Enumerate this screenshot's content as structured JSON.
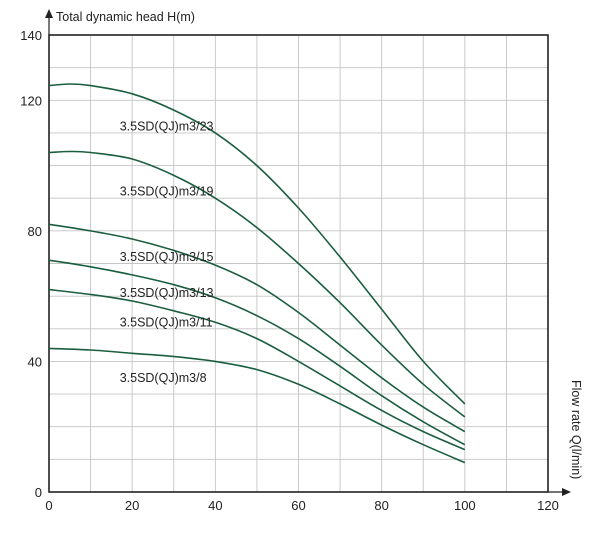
{
  "chart_data": {
    "type": "line",
    "xlabel": "Flow rate Q(l/min)",
    "ylabel": "Total dynamic head H(m)",
    "xlim": [
      0,
      120
    ],
    "ylim": [
      0,
      140
    ],
    "x_ticks": [
      0,
      20,
      40,
      60,
      80,
      100,
      120
    ],
    "y_ticks": [
      0,
      40,
      80,
      120,
      140
    ],
    "grid": true,
    "legend": "none",
    "colors": {
      "curve": "#1b5e3f",
      "grid": "#c4c4c4",
      "axis": "#222222",
      "text": "#222222"
    },
    "series": [
      {
        "name": "3.5SD(QJ)m3/23",
        "x": [
          0,
          5,
          10,
          20,
          30,
          40,
          50,
          60,
          70,
          80,
          90,
          100
        ],
        "y": [
          124.5,
          125,
          124.5,
          122,
          117,
          110,
          100,
          87,
          72,
          56,
          40,
          27
        ]
      },
      {
        "name": "3.5SD(QJ)m3/19",
        "x": [
          0,
          5,
          10,
          20,
          30,
          40,
          50,
          60,
          70,
          80,
          90,
          100
        ],
        "y": [
          104,
          104.3,
          104,
          102,
          97,
          90,
          81,
          70,
          58,
          45,
          33,
          23
        ]
      },
      {
        "name": "3.5SD(QJ)m3/15",
        "x": [
          0,
          10,
          20,
          30,
          40,
          50,
          60,
          70,
          80,
          90,
          100
        ],
        "y": [
          82,
          80,
          77.5,
          74,
          69.5,
          63.5,
          55,
          45,
          35,
          26,
          18.5
        ]
      },
      {
        "name": "3.5SD(QJ)m3/13",
        "x": [
          0,
          10,
          20,
          30,
          40,
          50,
          60,
          70,
          80,
          90,
          100
        ],
        "y": [
          71,
          69,
          66.5,
          63.5,
          59.5,
          54,
          47,
          38.5,
          29.5,
          21.5,
          14.5
        ]
      },
      {
        "name": "3.5SD(QJ)m3/11",
        "x": [
          0,
          10,
          20,
          30,
          40,
          50,
          60,
          70,
          80,
          90,
          100
        ],
        "y": [
          62,
          60.5,
          58.5,
          55.5,
          52,
          47,
          40,
          32.5,
          25,
          18.5,
          13
        ]
      },
      {
        "name": "3.5SD(QJ)m3/8",
        "x": [
          0,
          10,
          20,
          30,
          40,
          50,
          60,
          70,
          80,
          90,
          100
        ],
        "y": [
          44,
          43.5,
          42.5,
          41.5,
          40,
          37.5,
          33,
          27,
          20.5,
          14.5,
          9
        ]
      }
    ],
    "series_labels": [
      {
        "text": "3.5SD(QJ)m3/23",
        "x": 17,
        "y": 112
      },
      {
        "text": "3.5SD(QJ)m3/19",
        "x": 17,
        "y": 92
      },
      {
        "text": "3.5SD(QJ)m3/15",
        "x": 17,
        "y": 72
      },
      {
        "text": "3.5SD(QJ)m3/13",
        "x": 17,
        "y": 61
      },
      {
        "text": "3.5SD(QJ)m3/11",
        "x": 17,
        "y": 52
      },
      {
        "text": "3.5SD(QJ)m3/8",
        "x": 17,
        "y": 35
      }
    ]
  }
}
